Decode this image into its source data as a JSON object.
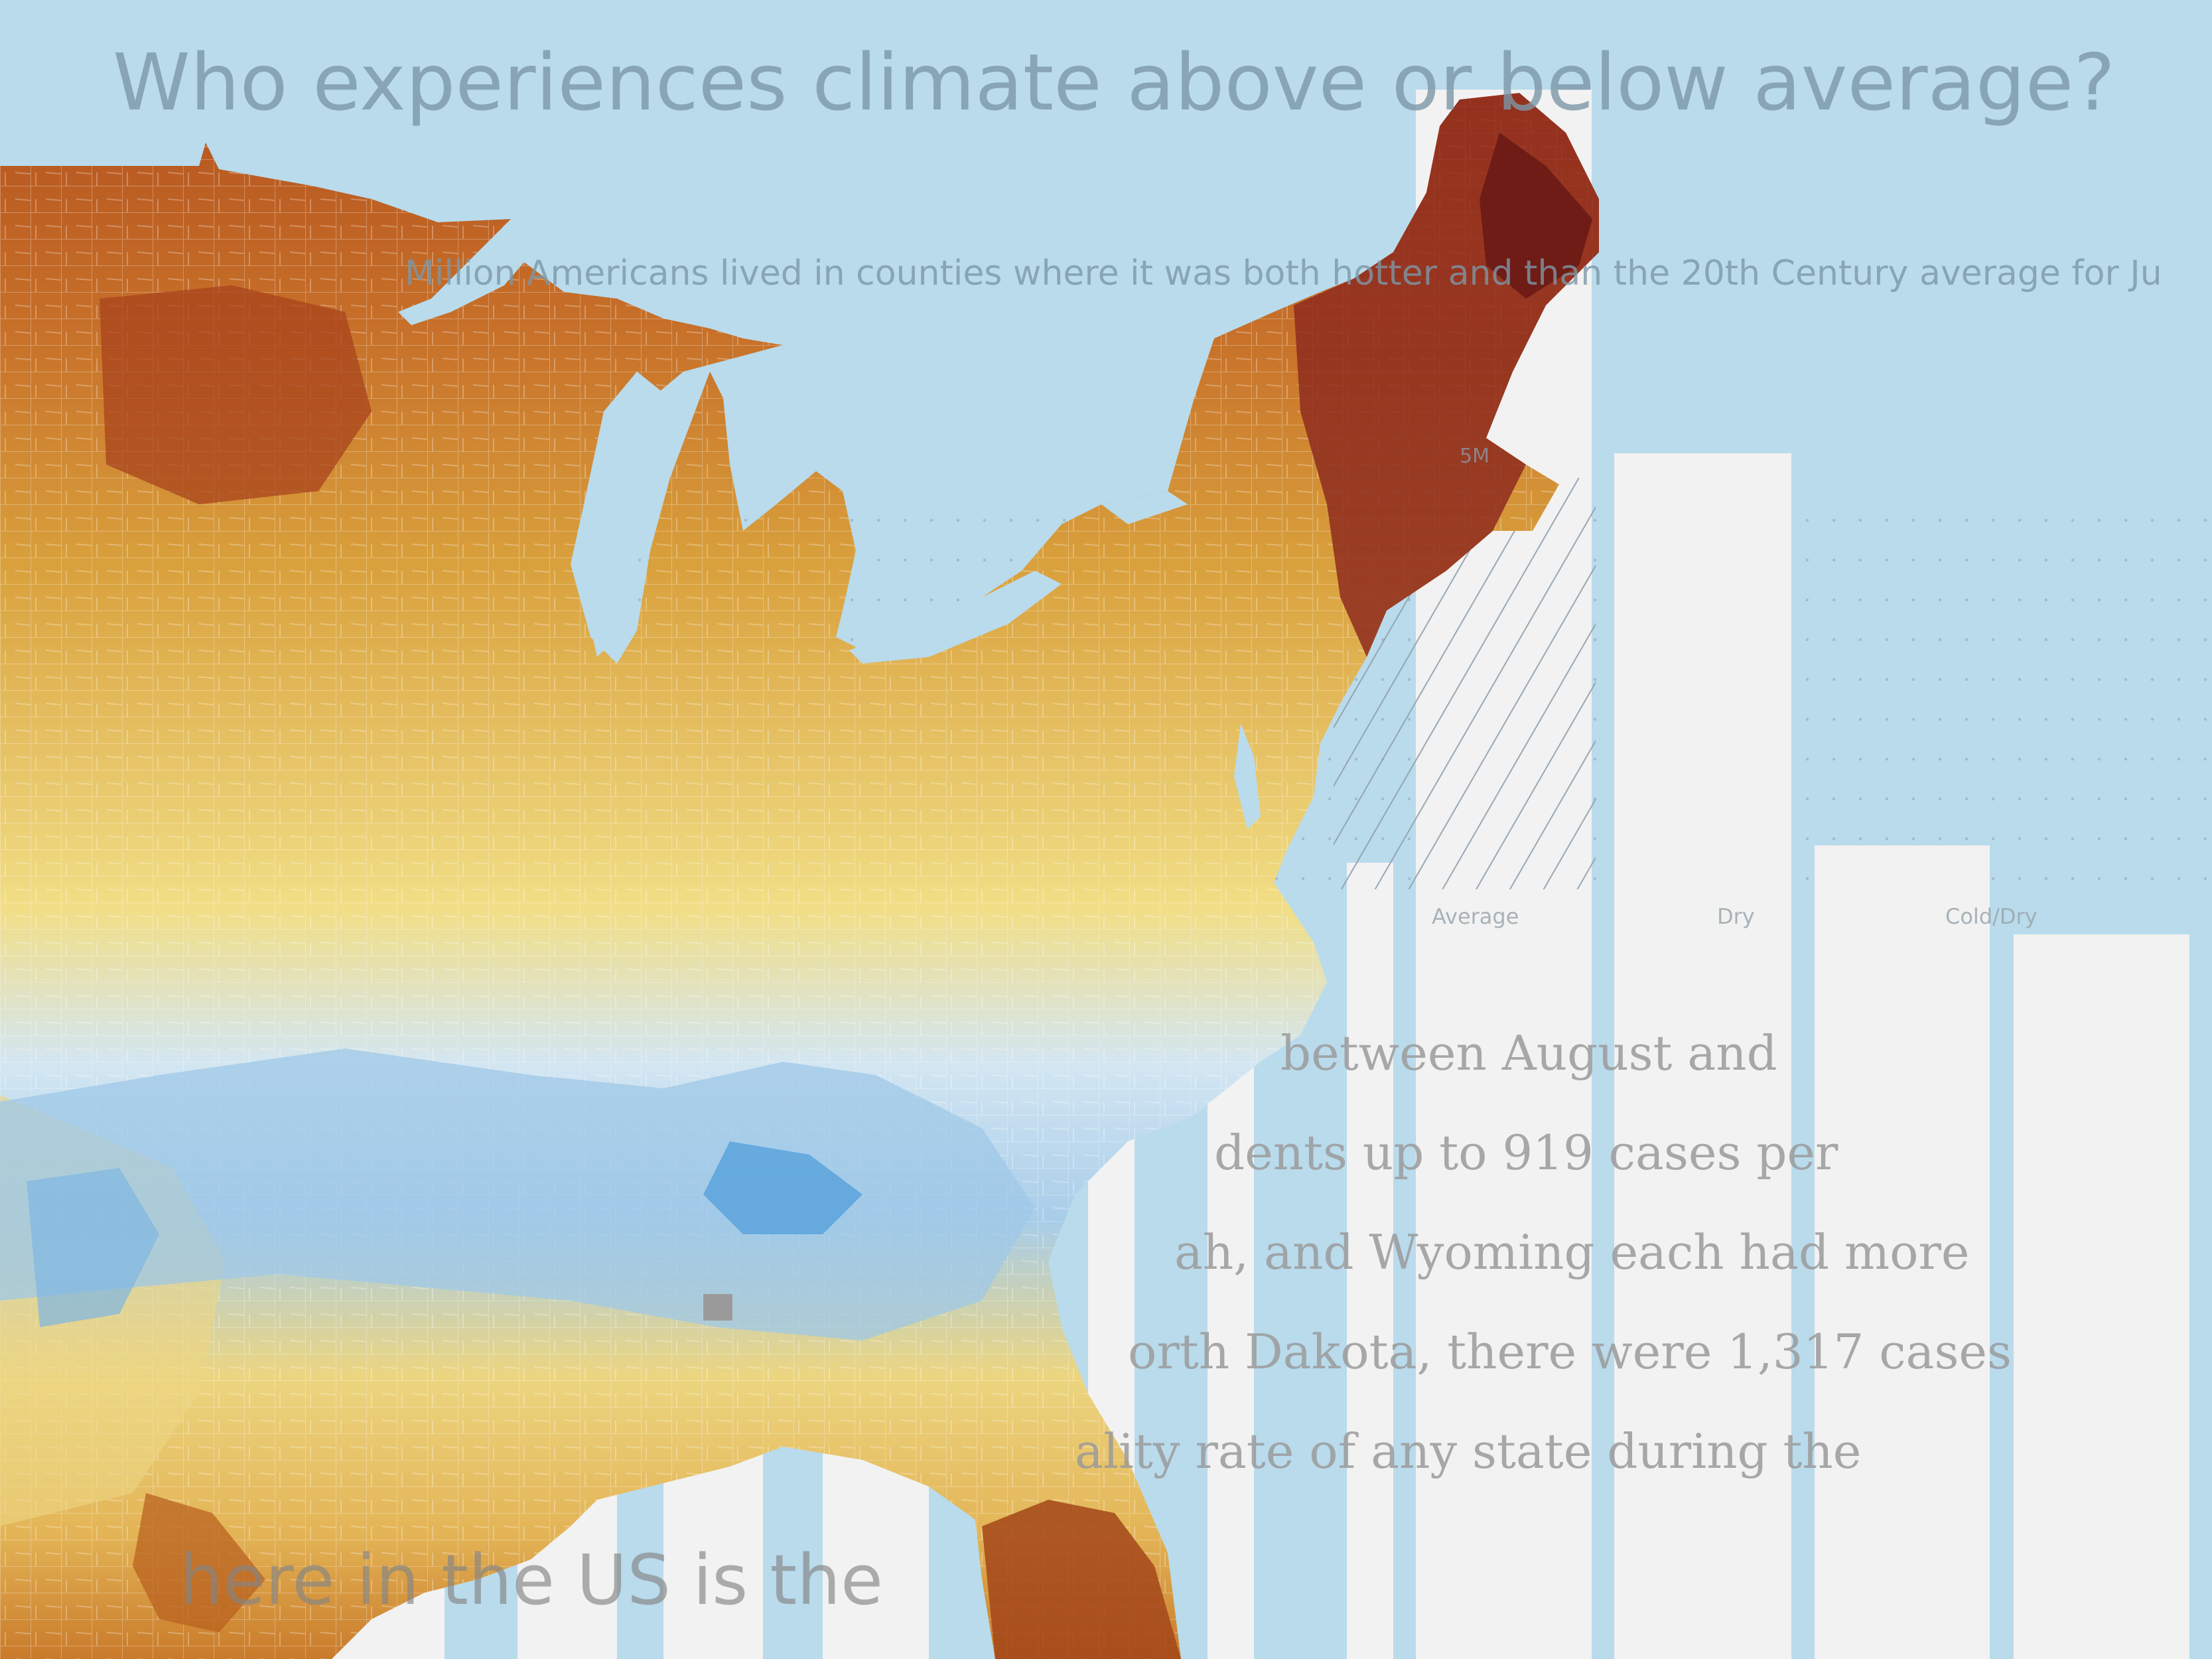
{
  "headline": "Who experiences climate above or below average?",
  "subtitle": "Million Americans lived in counties where it was both hotter and than the 20th Century average for Ju",
  "chart_scale_label": "5M",
  "categories": [
    {
      "label": "Average"
    },
    {
      "label": "Dry"
    },
    {
      "label": "Cold/Dry"
    }
  ],
  "paragraph_lines": [
    "between August and",
    "dents up to 919 cases per",
    "ah, and Wyoming each had more",
    "orth Dakota, there were 1,317 cases",
    "ality rate of any state during the"
  ],
  "bottom_heading": "here in the US is the",
  "colors": {
    "background": "#b9dbec",
    "bar_fill": "#f2f2f2",
    "map_hot": "#6e1a17",
    "map_warm": "#d28a2e",
    "map_mild": "#f1de86",
    "map_cool": "#5aa3dc",
    "water": "#b9dbec"
  }
}
